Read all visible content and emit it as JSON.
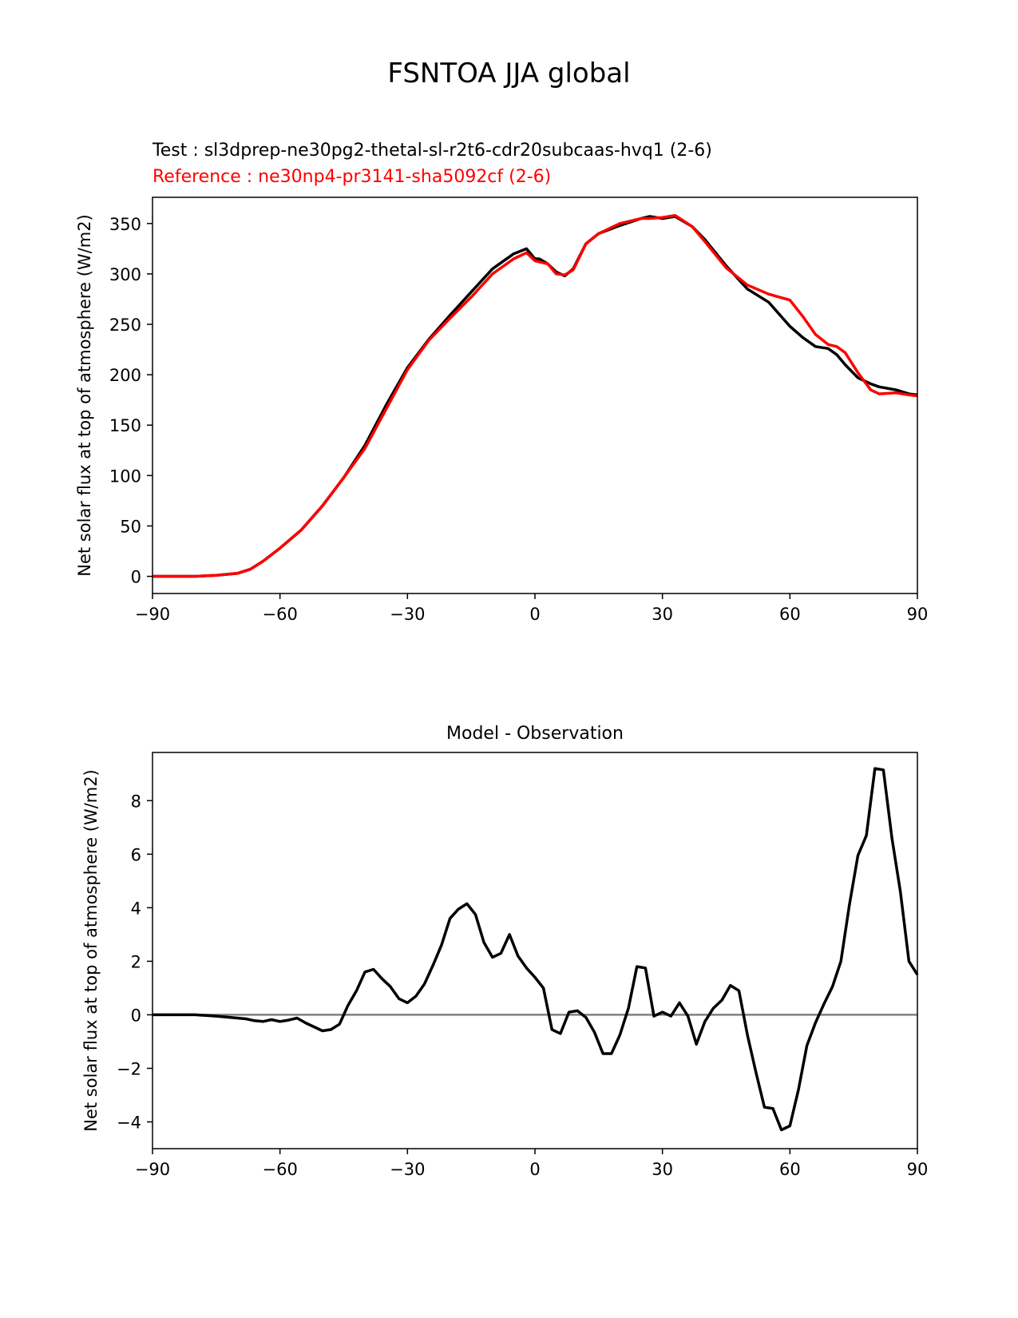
{
  "figure": {
    "suptitle": "FSNTOA JJA global",
    "test_label": "Test : sl3dprep-ne30pg2-thetal-sl-r2t6-cdr20subcaas-hvq1 (2-6)",
    "reference_label": "Reference : ne30np4-pr3141-sha5092cf (2-6)"
  },
  "chart_data": [
    {
      "type": "line",
      "title": "",
      "xlabel": "",
      "ylabel": "Net solar flux at top of atmosphere (W/m2)",
      "xlim": [
        -90,
        90
      ],
      "ylim": [
        -17,
        376
      ],
      "xticks": [
        -90,
        -60,
        -30,
        0,
        30,
        60,
        90
      ],
      "xtick_labels": [
        "−90",
        "−60",
        "−30",
        "0",
        "30",
        "60",
        "90"
      ],
      "yticks": [
        0,
        50,
        100,
        150,
        200,
        250,
        300,
        350
      ],
      "ytick_labels": [
        "0",
        "50",
        "100",
        "150",
        "200",
        "250",
        "300",
        "350"
      ],
      "grid": false,
      "series": [
        {
          "color": "#000000",
          "x": [
            -90,
            -80,
            -75,
            -70,
            -67,
            -64,
            -60,
            -55,
            -50,
            -45,
            -40,
            -35,
            -30,
            -25,
            -20,
            -15,
            -10,
            -5,
            -2,
            0,
            1,
            3,
            5,
            7,
            9,
            12,
            15,
            20,
            25,
            27,
            30,
            33,
            37,
            40,
            45,
            50,
            55,
            60,
            63,
            66,
            69,
            71,
            73,
            76,
            79,
            81,
            85,
            88,
            90
          ],
          "y": [
            0,
            0,
            1,
            3,
            7,
            15,
            28,
            46,
            70,
            98,
            130,
            170,
            207,
            235,
            259,
            282,
            305,
            320,
            325,
            315,
            315,
            310,
            302,
            298,
            305,
            330,
            340,
            348,
            355,
            357,
            355,
            357,
            347,
            334,
            308,
            285,
            272,
            248,
            237,
            228,
            226,
            220,
            210,
            197,
            191,
            188,
            185,
            181,
            180
          ]
        },
        {
          "color": "#ff0000",
          "x": [
            -90,
            -80,
            -75,
            -70,
            -67,
            -64,
            -60,
            -55,
            -50,
            -45,
            -40,
            -35,
            -30,
            -25,
            -20,
            -15,
            -10,
            -5,
            -2,
            0,
            1,
            3,
            5,
            7,
            9,
            12,
            15,
            20,
            25,
            27,
            30,
            33,
            37,
            40,
            45,
            50,
            55,
            60,
            63,
            66,
            69,
            71,
            73,
            76,
            79,
            81,
            85,
            88,
            90
          ],
          "y": [
            0,
            0,
            1,
            3,
            7,
            15,
            28,
            46,
            70,
            98,
            127,
            166,
            205,
            234,
            256,
            277,
            300,
            315,
            321,
            313,
            312,
            310,
            300,
            299,
            304,
            330,
            340,
            350,
            355,
            355,
            356,
            358,
            347,
            332,
            306,
            289,
            280,
            274,
            258,
            240,
            230,
            228,
            222,
            202,
            185,
            181,
            182,
            180,
            179
          ]
        }
      ]
    },
    {
      "type": "line",
      "title": "Model - Observation",
      "xlabel": "",
      "ylabel": "Net solar flux at top of atmosphere (W/m2)",
      "xlim": [
        -90,
        90
      ],
      "ylim": [
        -5,
        9.8
      ],
      "xticks": [
        -90,
        -60,
        -30,
        0,
        30,
        60,
        90
      ],
      "xtick_labels": [
        "−90",
        "−60",
        "−30",
        "0",
        "30",
        "60",
        "90"
      ],
      "yticks": [
        -4,
        -2,
        0,
        2,
        4,
        6,
        8
      ],
      "ytick_labels": [
        "−4",
        "−2",
        "0",
        "2",
        "4",
        "6",
        "8"
      ],
      "grid": false,
      "zero_line_color": "#808080",
      "series": [
        {
          "color": "#000000",
          "x": [
            -90,
            -80,
            -75,
            -70,
            -68,
            -66,
            -64,
            -62,
            -60,
            -58,
            -56,
            -54,
            -52,
            -50,
            -48,
            -46,
            -44,
            -42,
            -40,
            -38,
            -36,
            -34,
            -32,
            -30,
            -28,
            -26,
            -24,
            -22,
            -20,
            -18,
            -16,
            -14,
            -12,
            -10,
            -8,
            -6,
            -4,
            -2,
            0,
            2,
            4,
            6,
            8,
            10,
            12,
            14,
            16,
            18,
            20,
            22,
            24,
            26,
            28,
            30,
            32,
            34,
            36,
            38,
            40,
            42,
            44,
            46,
            48,
            50,
            52,
            54,
            56,
            58,
            60,
            62,
            64,
            66,
            68,
            70,
            72,
            74,
            76,
            78,
            80,
            82,
            84,
            86,
            88,
            90
          ],
          "y": [
            0,
            0,
            -0.05,
            -0.12,
            -0.15,
            -0.22,
            -0.25,
            -0.18,
            -0.25,
            -0.2,
            -0.12,
            -0.3,
            -0.45,
            -0.6,
            -0.55,
            -0.35,
            0.35,
            0.9,
            1.6,
            1.7,
            1.35,
            1.05,
            0.6,
            0.45,
            0.7,
            1.15,
            1.85,
            2.6,
            3.6,
            3.95,
            4.15,
            3.75,
            2.7,
            2.15,
            2.3,
            3.0,
            2.2,
            1.75,
            1.4,
            1.0,
            -0.55,
            -0.7,
            0.1,
            0.15,
            -0.1,
            -0.65,
            -1.45,
            -1.45,
            -0.75,
            0.25,
            1.8,
            1.75,
            -0.05,
            0.1,
            -0.05,
            0.45,
            -0.05,
            -1.1,
            -0.25,
            0.25,
            0.55,
            1.1,
            0.9,
            -0.75,
            -2.15,
            -3.45,
            -3.5,
            -4.3,
            -4.15,
            -2.8,
            -1.15,
            -0.3,
            0.4,
            1.05,
            2.0,
            4.1,
            5.95,
            6.7,
            9.2,
            9.15,
            6.6,
            4.6,
            2.0,
            1.5
          ]
        }
      ]
    }
  ]
}
